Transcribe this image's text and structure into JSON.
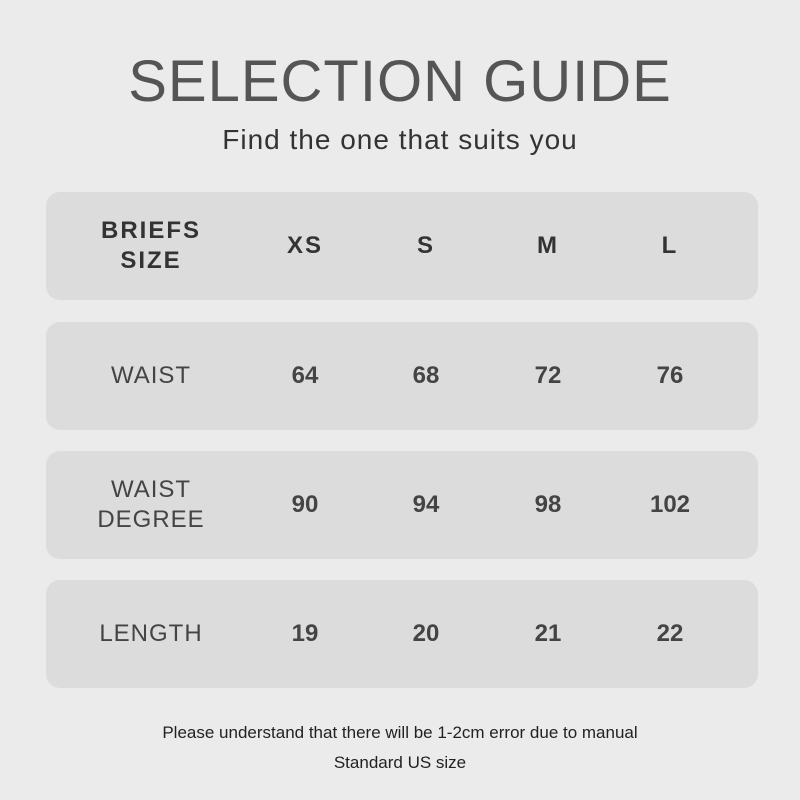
{
  "title": "SELECTION GUIDE",
  "subtitle": "Find the one that suits you",
  "header": {
    "label": "BRIEFS SIZE",
    "sizes": [
      "XS",
      "S",
      "M",
      "L"
    ]
  },
  "rows": [
    {
      "label": "WAIST",
      "values": [
        "64",
        "68",
        "72",
        "76"
      ]
    },
    {
      "label": "WAIST DEGREE",
      "values": [
        "90",
        "94",
        "98",
        "102"
      ]
    },
    {
      "label": "LENGTH",
      "values": [
        "19",
        "20",
        "21",
        "22"
      ]
    }
  ],
  "notes": [
    "Please understand that there will be 1-2cm error due to manual",
    "Standard US size"
  ]
}
